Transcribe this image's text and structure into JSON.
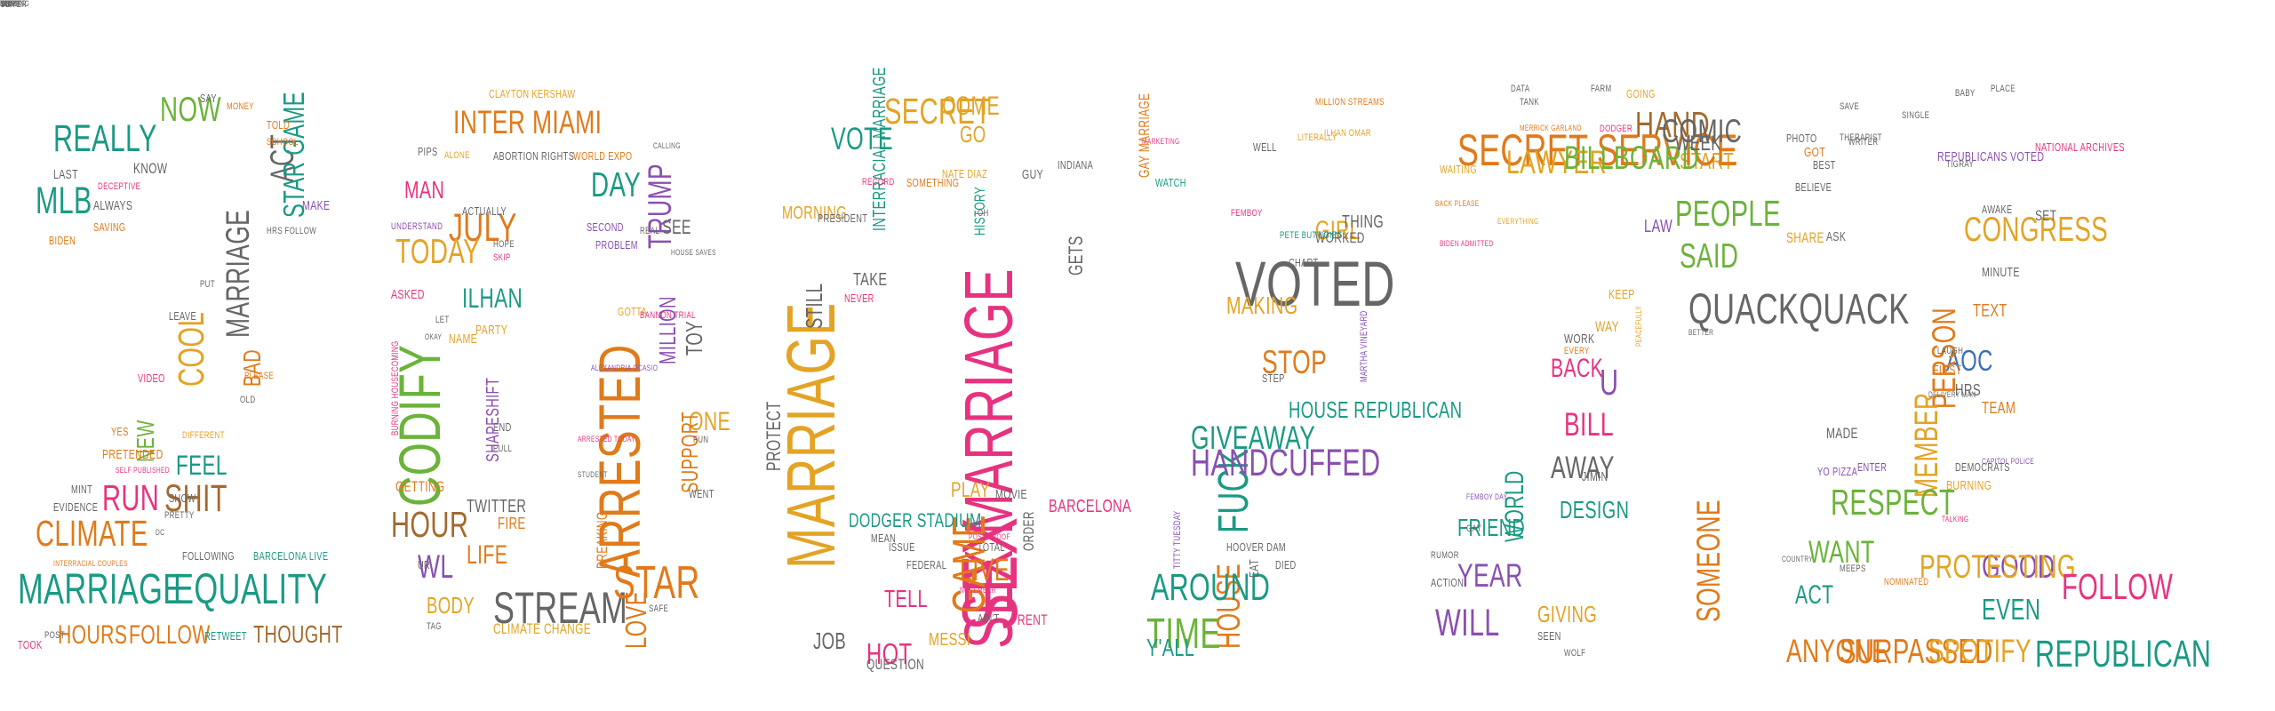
{
  "title": "",
  "palette": {
    "teal": "#1a9a84",
    "green": "#6bb33a",
    "orange": "#e07a1a",
    "amber": "#e3a324",
    "pink": "#e7337f",
    "purple": "#8a4fb0",
    "brown": "#a46a2c",
    "gray": "#666666",
    "blue": "#3a6fb5"
  },
  "words": [
    {
      "t": "MLB",
      "c": "teal",
      "s": 46
    },
    {
      "t": "REALLY",
      "c": "teal",
      "s": 46
    },
    {
      "t": "NOW",
      "c": "green",
      "s": 42
    },
    {
      "t": "MARRIAGE",
      "c": "gray",
      "s": 40
    },
    {
      "t": "ACT",
      "c": "gray",
      "s": 40
    },
    {
      "t": "STAR GAME",
      "c": "teal",
      "s": 36
    },
    {
      "t": "COOL",
      "c": "amber",
      "s": 44
    },
    {
      "t": "SHIT",
      "c": "brown",
      "s": 46
    },
    {
      "t": "BAD",
      "c": "orange",
      "s": 30
    },
    {
      "t": "NEW",
      "c": "green",
      "s": 30
    },
    {
      "t": "FEEL",
      "c": "teal",
      "s": 34
    },
    {
      "t": "RUN",
      "c": "pink",
      "s": 44
    },
    {
      "t": "CLIMATE",
      "c": "orange",
      "s": 44
    },
    {
      "t": "MARRIAGE",
      "c": "teal",
      "s": 52
    },
    {
      "t": "EQUALITY",
      "c": "teal",
      "s": 52
    },
    {
      "t": "HOURS",
      "c": "orange",
      "s": 32
    },
    {
      "t": "FOLLOW",
      "c": "orange",
      "s": 32
    },
    {
      "t": "THOUGHT",
      "c": "brown",
      "s": 30
    },
    {
      "t": "KNOW",
      "c": "gray",
      "s": 18
    },
    {
      "t": "LAST",
      "c": "gray",
      "s": 16
    },
    {
      "t": "SAY",
      "c": "gray",
      "s": 14
    },
    {
      "t": "MONEY",
      "c": "orange",
      "s": 12
    },
    {
      "t": "TOLD",
      "c": "orange",
      "s": 14
    },
    {
      "t": "SCHOOL",
      "c": "orange",
      "s": 12
    },
    {
      "t": "MAKE",
      "c": "purple",
      "s": 16
    },
    {
      "t": "ALWAYS",
      "c": "gray",
      "s": 16
    },
    {
      "t": "SAVING",
      "c": "orange",
      "s": 14
    },
    {
      "t": "BIDEN",
      "c": "orange",
      "s": 14
    },
    {
      "t": "DECEPTIVE",
      "c": "pink",
      "s": 12
    },
    {
      "t": "HRS FOLLOW",
      "c": "gray",
      "s": 12
    },
    {
      "t": "PUT",
      "c": "gray",
      "s": 12
    },
    {
      "t": "LEAVE",
      "c": "gray",
      "s": 14
    },
    {
      "t": "VIDEO",
      "c": "pink",
      "s": 14
    },
    {
      "t": "PLEASE",
      "c": "orange",
      "s": 12
    },
    {
      "t": "OLD",
      "c": "gray",
      "s": 12
    },
    {
      "t": "PRETENDED",
      "c": "orange",
      "s": 16
    },
    {
      "t": "SELF PUBLISHED",
      "c": "pink",
      "s": 10
    },
    {
      "t": "YES",
      "c": "orange",
      "s": 14
    },
    {
      "t": "MINT",
      "c": "gray",
      "s": 14
    },
    {
      "t": "EVIDENCE",
      "c": "gray",
      "s": 14
    },
    {
      "t": "SHOW",
      "c": "gray",
      "s": 14
    },
    {
      "t": "PRETTY",
      "c": "gray",
      "s": 12
    },
    {
      "t": "DC",
      "c": "gray",
      "s": 10
    },
    {
      "t": "FOLLOWING",
      "c": "gray",
      "s": 14
    },
    {
      "t": "BARCELONA LIVE",
      "c": "teal",
      "s": 14
    },
    {
      "t": "RETWEET",
      "c": "teal",
      "s": 14
    },
    {
      "t": "TOOK",
      "c": "pink",
      "s": 14
    },
    {
      "t": "POST",
      "c": "gray",
      "s": 12
    },
    {
      "t": "DIFFERENT",
      "c": "amber",
      "s": 12
    },
    {
      "t": "INTERRACIAL COUPLES",
      "c": "orange",
      "s": 10
    },
    {
      "t": "CODIFY",
      "c": "green",
      "s": 72
    },
    {
      "t": "JULY",
      "c": "orange",
      "s": 48
    },
    {
      "t": "MAN",
      "c": "pink",
      "s": 30
    },
    {
      "t": "TODAY",
      "c": "amber",
      "s": 42
    },
    {
      "t": "INTER MIAMI",
      "c": "orange",
      "s": 40
    },
    {
      "t": "ILHAN",
      "c": "teal",
      "s": 34
    },
    {
      "t": "HOUR",
      "c": "brown",
      "s": 44
    },
    {
      "t": "WL",
      "c": "purple",
      "s": 40
    },
    {
      "t": "LIFE",
      "c": "orange",
      "s": 32
    },
    {
      "t": "BODY",
      "c": "amber",
      "s": 28
    },
    {
      "t": "STREAM",
      "c": "gray",
      "s": 54
    },
    {
      "t": "CLIMATE CHANGE",
      "c": "amber",
      "s": 18
    },
    {
      "t": "SHAPESHIFT",
      "c": "purple",
      "s": 22
    },
    {
      "t": "ARRESTED",
      "c": "orange",
      "s": 72
    },
    {
      "t": "TRUMP",
      "c": "purple",
      "s": 40
    },
    {
      "t": "DAY",
      "c": "teal",
      "s": 42
    },
    {
      "t": "SEE",
      "c": "gray",
      "s": 24
    },
    {
      "t": "MILLION",
      "c": "purple",
      "s": 28
    },
    {
      "t": "TOY",
      "c": "gray",
      "s": 28
    },
    {
      "t": "ONE",
      "c": "amber",
      "s": 32
    },
    {
      "t": "SUPPORT",
      "c": "orange",
      "s": 28
    },
    {
      "t": "STAR",
      "c": "orange",
      "s": 56
    },
    {
      "t": "LOVE",
      "c": "orange",
      "s": 36
    },
    {
      "t": "BREAKING",
      "c": "orange",
      "s": 18
    },
    {
      "t": "TWITTER",
      "c": "gray",
      "s": 22
    },
    {
      "t": "FIRE",
      "c": "orange",
      "s": 20
    },
    {
      "t": "GETTING",
      "c": "orange",
      "s": 18
    },
    {
      "t": "NAME",
      "c": "amber",
      "s": 16
    },
    {
      "t": "PARTY",
      "c": "amber",
      "s": 16
    },
    {
      "t": "ASKED",
      "c": "pink",
      "s": 16
    },
    {
      "t": "ACTUALLY",
      "c": "gray",
      "s": 14
    },
    {
      "t": "WORLD EXPO",
      "c": "orange",
      "s": 14
    },
    {
      "t": "CLAYTON KERSHAW",
      "c": "amber",
      "s": 14
    },
    {
      "t": "ABORTION RIGHTS",
      "c": "gray",
      "s": 14
    },
    {
      "t": "SECOND",
      "c": "purple",
      "s": 14
    },
    {
      "t": "PROBLEM",
      "c": "purple",
      "s": 14
    },
    {
      "t": "GOTTA",
      "c": "amber",
      "s": 14
    },
    {
      "t": "BANNON TRIAL",
      "c": "pink",
      "s": 12
    },
    {
      "t": "ALEXANDRIA OCASIO",
      "c": "purple",
      "s": 10
    },
    {
      "t": "FUN",
      "c": "gray",
      "s": 12
    },
    {
      "t": "WENT",
      "c": "gray",
      "s": 14
    },
    {
      "t": "SAFE",
      "c": "gray",
      "s": 12
    },
    {
      "t": "ARRESTED TODAY",
      "c": "pink",
      "s": 10
    },
    {
      "t": "STUDENT",
      "c": "gray",
      "s": 10
    },
    {
      "t": "TAG",
      "c": "gray",
      "s": 12
    },
    {
      "t": "UR",
      "c": "gray",
      "s": 14
    },
    {
      "t": "OKAY",
      "c": "gray",
      "s": 10
    },
    {
      "t": "BURNING HOUSECOMING",
      "c": "pink",
      "s": 12
    },
    {
      "t": "UNDERSTAND",
      "c": "purple",
      "s": 12
    },
    {
      "t": "PIPS",
      "c": "gray",
      "s": 14
    },
    {
      "t": "ALONE",
      "c": "amber",
      "s": 12
    },
    {
      "t": "HOPE",
      "c": "gray",
      "s": 12
    },
    {
      "t": "SKIP",
      "c": "pink",
      "s": 12
    },
    {
      "t": "PULL",
      "c": "gray",
      "s": 12
    },
    {
      "t": "END",
      "c": "gray",
      "s": 14
    },
    {
      "t": "LET",
      "c": "gray",
      "s": 12
    },
    {
      "t": "HOUSE SAVES",
      "c": "gray",
      "s": 10
    },
    {
      "t": "REAL",
      "c": "gray",
      "s": 12
    },
    {
      "t": "CALLING",
      "c": "gray",
      "s": 10
    },
    {
      "t": "OH",
      "c": "gray",
      "s": 12
    },
    {
      "t": "SEX",
      "c": "pink",
      "s": 96
    },
    {
      "t": "MARRIAGE",
      "c": "amber",
      "s": 84
    },
    {
      "t": "SEX MARRIAGE",
      "c": "pink",
      "s": 84
    },
    {
      "t": "GAME",
      "c": "orange",
      "s": 56
    },
    {
      "t": "HOT",
      "c": "pink",
      "s": 36
    },
    {
      "t": "SECRET",
      "c": "amber",
      "s": 44
    },
    {
      "t": "VOTE",
      "c": "teal",
      "s": 38
    },
    {
      "t": "COME",
      "c": "amber",
      "s": 32
    },
    {
      "t": "GO",
      "c": "amber",
      "s": 28
    },
    {
      "t": "MORNING",
      "c": "amber",
      "s": 22
    },
    {
      "t": "HISTORY",
      "c": "teal",
      "s": 18
    },
    {
      "t": "GETS",
      "c": "gray",
      "s": 24
    },
    {
      "t": "INTERRACIAL MARRIAGE",
      "c": "teal",
      "s": 22
    },
    {
      "t": "ORDER",
      "c": "gray",
      "s": 18
    },
    {
      "t": "BARCELONA",
      "c": "pink",
      "s": 22
    },
    {
      "t": "MESSI",
      "c": "amber",
      "s": 22
    },
    {
      "t": "TELL",
      "c": "pink",
      "s": 30
    },
    {
      "t": "DODGER STADIUM",
      "c": "teal",
      "s": 24
    },
    {
      "t": "QUESTION",
      "c": "gray",
      "s": 18
    },
    {
      "t": "JOB",
      "c": "gray",
      "s": 28
    },
    {
      "t": "LIVE",
      "c": "orange",
      "s": 38
    },
    {
      "t": "PLAY",
      "c": "amber",
      "s": 26
    },
    {
      "t": "RENT",
      "c": "pink",
      "s": 18
    },
    {
      "t": "TAKE",
      "c": "gray",
      "s": 22
    },
    {
      "t": "STILL",
      "c": "gray",
      "s": 28
    },
    {
      "t": "PROTECT",
      "c": "gray",
      "s": 24
    },
    {
      "t": "MOVIE",
      "c": "gray",
      "s": 16
    },
    {
      "t": "GUY",
      "c": "gray",
      "s": 16
    },
    {
      "t": "INDIANA",
      "c": "gray",
      "s": 14
    },
    {
      "t": "NATE DIAZ",
      "c": "amber",
      "s": 14
    },
    {
      "t": "SOMETHING",
      "c": "orange",
      "s": 14
    },
    {
      "t": "RECORD",
      "c": "pink",
      "s": 12
    },
    {
      "t": "PRESIDENT",
      "c": "gray",
      "s": 14
    },
    {
      "t": "NEVER",
      "c": "pink",
      "s": 14
    },
    {
      "t": "MEAN",
      "c": "gray",
      "s": 14
    },
    {
      "t": "ISSUE",
      "c": "gray",
      "s": 14
    },
    {
      "t": "FEDERAL",
      "c": "gray",
      "s": 14
    },
    {
      "t": "TOTAL",
      "c": "gray",
      "s": 14
    },
    {
      "t": "NOVEMBER",
      "c": "pink",
      "s": 10
    },
    {
      "t": "POST PROOF",
      "c": "pink",
      "s": 10
    },
    {
      "t": "AIN'T",
      "c": "gray",
      "s": 14
    },
    {
      "t": "MARKETING",
      "c": "pink",
      "s": 10
    },
    {
      "t": "MILLION STREAMS",
      "c": "orange",
      "s": 12
    },
    {
      "t": "LITERALLY",
      "c": "amber",
      "s": 12
    },
    {
      "t": "WATCH",
      "c": "teal",
      "s": 14
    },
    {
      "t": "FEMBOY",
      "c": "pink",
      "s": 12
    },
    {
      "t": "VOTED",
      "c": "gray",
      "s": 78
    },
    {
      "t": "MAKING",
      "c": "amber",
      "s": 30
    },
    {
      "t": "STOP",
      "c": "orange",
      "s": 40
    },
    {
      "t": "HOUSE REPUBLICAN",
      "c": "teal",
      "s": 28
    },
    {
      "t": "FUCK",
      "c": "teal",
      "s": 52
    },
    {
      "t": "HOUSE",
      "c": "orange",
      "s": 40
    },
    {
      "t": "AROUND",
      "c": "teal",
      "s": 46
    },
    {
      "t": "TIME",
      "c": "green",
      "s": 52
    },
    {
      "t": "Y'ALL",
      "c": "teal",
      "s": 30
    },
    {
      "t": "GIVEAWAY",
      "c": "teal",
      "s": 40
    },
    {
      "t": "HANDCUFFED",
      "c": "purple",
      "s": 46
    },
    {
      "t": "GIRL",
      "c": "amber",
      "s": 32
    },
    {
      "t": "THING",
      "c": "gray",
      "s": 22
    },
    {
      "t": "WORKED",
      "c": "gray",
      "s": 18
    },
    {
      "t": "CHART",
      "c": "gray",
      "s": 14
    },
    {
      "t": "WELL",
      "c": "gray",
      "s": 14
    },
    {
      "t": "GAY MARRIAGE",
      "c": "orange",
      "s": 18
    },
    {
      "t": "STEP",
      "c": "gray",
      "s": 14
    },
    {
      "t": "HOOVER DAM",
      "c": "gray",
      "s": 14
    },
    {
      "t": "EAT",
      "c": "gray",
      "s": 16
    },
    {
      "t": "DIED",
      "c": "gray",
      "s": 14
    },
    {
      "t": "ILHAN OMAR",
      "c": "amber",
      "s": 12
    },
    {
      "t": "TITTY TUESDAY",
      "c": "purple",
      "s": 12
    },
    {
      "t": "PETE BUTTIGIEG",
      "c": "teal",
      "s": 12
    },
    {
      "t": "MARTHA VINEYARD",
      "c": "purple",
      "s": 12
    },
    {
      "t": "TANK",
      "c": "gray",
      "s": 12
    },
    {
      "t": "MERRICK GARLAND",
      "c": "orange",
      "s": 10
    },
    {
      "t": "WAITING",
      "c": "amber",
      "s": 14
    },
    {
      "t": "BACK PLEASE",
      "c": "orange",
      "s": 10
    },
    {
      "t": "PEACEFULLY",
      "c": "amber",
      "s": 10
    },
    {
      "t": "HAND",
      "c": "brown",
      "s": 44
    },
    {
      "t": "START",
      "c": "amber",
      "s": 28
    },
    {
      "t": "PEOPLE",
      "c": "green",
      "s": 44
    },
    {
      "t": "SAID",
      "c": "green",
      "s": 42
    },
    {
      "t": "QUACKQUACK",
      "c": "gray",
      "s": 52
    },
    {
      "t": "U",
      "c": "purple",
      "s": 44
    },
    {
      "t": "BACK",
      "c": "pink",
      "s": 32
    },
    {
      "t": "BILL",
      "c": "pink",
      "s": 40
    },
    {
      "t": "AWAY",
      "c": "gray",
      "s": 38
    },
    {
      "t": "WORLD",
      "c": "teal",
      "s": 32
    },
    {
      "t": "FRIEND",
      "c": "teal",
      "s": 30
    },
    {
      "t": "YEAR",
      "c": "purple",
      "s": 40
    },
    {
      "t": "WILL",
      "c": "purple",
      "s": 46
    },
    {
      "t": "GIVING",
      "c": "amber",
      "s": 28
    },
    {
      "t": "SOMEONE",
      "c": "orange",
      "s": 40
    },
    {
      "t": "DESIGN",
      "c": "teal",
      "s": 30
    },
    {
      "t": "SECRET SERVICE",
      "c": "orange",
      "s": 54
    },
    {
      "t": "LAWYER",
      "c": "amber",
      "s": 40
    },
    {
      "t": "BILLBOARD",
      "c": "green",
      "s": 40
    },
    {
      "t": "COMIC",
      "c": "gray",
      "s": 40
    },
    {
      "t": "WEEK",
      "c": "gray",
      "s": 26
    },
    {
      "t": "LAW",
      "c": "purple",
      "s": 22
    },
    {
      "t": "KEEP",
      "c": "amber",
      "s": 16
    },
    {
      "t": "WAY",
      "c": "amber",
      "s": 18
    },
    {
      "t": "WORK",
      "c": "gray",
      "s": 16
    },
    {
      "t": "EVERY",
      "c": "orange",
      "s": 12
    },
    {
      "t": "BETTER",
      "c": "gray",
      "s": 10
    },
    {
      "t": "FEMBOY DAY",
      "c": "purple",
      "s": 10
    },
    {
      "t": "GAY",
      "c": "gray",
      "s": 12
    },
    {
      "t": "RUMOR",
      "c": "gray",
      "s": 12
    },
    {
      "t": "ACTION",
      "c": "gray",
      "s": 14
    },
    {
      "t": "SEEN",
      "c": "gray",
      "s": 14
    },
    {
      "t": "WOLF",
      "c": "gray",
      "s": 12
    },
    {
      "t": "JIMIN",
      "c": "gray",
      "s": 16
    },
    {
      "t": "DATA",
      "c": "gray",
      "s": 12
    },
    {
      "t": "FARM",
      "c": "gray",
      "s": 12
    },
    {
      "t": "GOING",
      "c": "amber",
      "s": 14
    },
    {
      "t": "DODGER",
      "c": "pink",
      "s": 12
    },
    {
      "t": "EVERYTHING",
      "c": "amber",
      "s": 10
    },
    {
      "t": "BIDEN ADMITTED",
      "c": "pink",
      "s": 10
    },
    {
      "t": "SINGLE",
      "c": "gray",
      "s": 12
    },
    {
      "t": "BABY",
      "c": "gray",
      "s": 12
    },
    {
      "t": "SAVE",
      "c": "gray",
      "s": 12
    },
    {
      "t": "WRITER",
      "c": "gray",
      "s": 12
    },
    {
      "t": "BELIEVE",
      "c": "gray",
      "s": 14
    },
    {
      "t": "TIGRAY",
      "c": "gray",
      "s": 12
    },
    {
      "t": "CONGRESS",
      "c": "amber",
      "s": 42
    },
    {
      "t": "MINUTE",
      "c": "gray",
      "s": 16
    },
    {
      "t": "TEXT",
      "c": "orange",
      "s": 22
    },
    {
      "t": "AOC",
      "c": "blue",
      "s": 36
    },
    {
      "t": "PERSON",
      "c": "orange",
      "s": 40
    },
    {
      "t": "MEMBER",
      "c": "amber",
      "s": 40
    },
    {
      "t": "RESPECT",
      "c": "green",
      "s": 44
    },
    {
      "t": "WANT",
      "c": "green",
      "s": 38
    },
    {
      "t": "GOOD",
      "c": "purple",
      "s": 40
    },
    {
      "t": "ACT",
      "c": "teal",
      "s": 32
    },
    {
      "t": "EVEN",
      "c": "teal",
      "s": 36
    },
    {
      "t": "PROTESTING",
      "c": "amber",
      "s": 40
    },
    {
      "t": "FOLLOW",
      "c": "pink",
      "s": 44
    },
    {
      "t": "SURPASSED",
      "c": "orange",
      "s": 42
    },
    {
      "t": "SPOTIFY",
      "c": "amber",
      "s": 40
    },
    {
      "t": "REPUBLICAN",
      "c": "teal",
      "s": 46
    },
    {
      "t": "ANYONE",
      "c": "orange",
      "s": 40
    },
    {
      "t": "SHARE",
      "c": "amber",
      "s": 18
    },
    {
      "t": "ASK",
      "c": "gray",
      "s": 16
    },
    {
      "t": "REPUBLICANS VOTED",
      "c": "purple",
      "s": 16
    },
    {
      "t": "NATIONAL ARCHIVES",
      "c": "pink",
      "s": 14
    },
    {
      "t": "DEMOCRATS",
      "c": "gray",
      "s": 14
    },
    {
      "t": "YO PIZZA",
      "c": "purple",
      "s": 14
    },
    {
      "t": "MADE",
      "c": "gray",
      "s": 18
    },
    {
      "t": "ENTER",
      "c": "purple",
      "s": 14
    },
    {
      "t": "BURNING",
      "c": "amber",
      "s": 16
    },
    {
      "t": "FIRST",
      "c": "orange",
      "s": 16
    },
    {
      "t": "HRS",
      "c": "gray",
      "s": 20
    },
    {
      "t": "SET",
      "c": "gray",
      "s": 18
    },
    {
      "t": "GOT",
      "c": "orange",
      "s": 16
    },
    {
      "t": "THERAPIST",
      "c": "gray",
      "s": 12
    },
    {
      "t": "BEST",
      "c": "gray",
      "s": 14
    },
    {
      "t": "TEAM",
      "c": "orange",
      "s": 20
    },
    {
      "t": "MEEPS",
      "c": "gray",
      "s": 12
    },
    {
      "t": "NOMINATED",
      "c": "orange",
      "s": 12
    },
    {
      "t": "AWAKE",
      "c": "gray",
      "s": 14
    },
    {
      "t": "PHOTO",
      "c": "gray",
      "s": 14
    },
    {
      "t": "PLACE",
      "c": "gray",
      "s": 12
    },
    {
      "t": "LAUGH",
      "c": "gray",
      "s": 12
    },
    {
      "t": "CAPITOL POLICE",
      "c": "purple",
      "s": 10
    },
    {
      "t": "DELIVERY MAN",
      "c": "gray",
      "s": 10
    },
    {
      "t": "TALKING",
      "c": "pink",
      "s": 10
    },
    {
      "t": "COUNTRY",
      "c": "gray",
      "s": 10
    },
    {
      "t": "TOP",
      "c": "gray",
      "s": 12
    },
    {
      "t": "OK",
      "c": "gray",
      "s": 12
    },
    {
      "t": "BLOCK",
      "c": "gray",
      "s": 10
    },
    {
      "t": "NOTHING",
      "c": "gray",
      "s": 10
    },
    {
      "t": "COVER",
      "c": "gray",
      "s": 12
    },
    {
      "t": "MUST",
      "c": "gray",
      "s": 10
    },
    {
      "t": "SPIRIT",
      "c": "gray",
      "s": 10
    }
  ]
}
